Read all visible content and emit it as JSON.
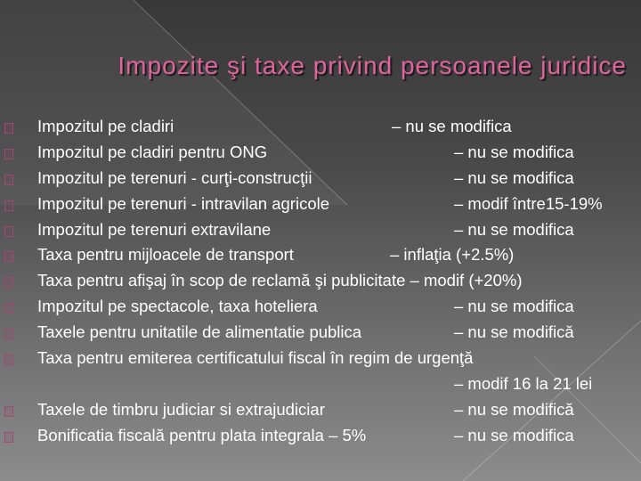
{
  "slide": {
    "title": "Impozite şi taxe privind persoanele juridice",
    "accent_color": "#e0649c",
    "bullet_icon": "square-bullet-icon",
    "items": [
      {
        "text": "Impozitul pe cladiri",
        "status": "– nu se modifica"
      },
      {
        "text": "Impozitul pe cladiri pentru ONG",
        "status": "– nu se modifica"
      },
      {
        "text": "Impozitul pe terenuri - curţi-construcţii",
        "status": "– nu se modifica"
      },
      {
        "text": "Impozitul pe terenuri - intravilan agricole",
        "status": "– modif între15-19%"
      },
      {
        "text": "Impozitul pe terenuri extravilane",
        "status": "– nu se modifica"
      },
      {
        "text": "Taxa pentru mijloacele de transport",
        "status": "– inflaţia (+2.5%)"
      },
      {
        "text": "Taxa pentru afişaj în scop de reclamă şi publicitate – modif (+20%)",
        "status": ""
      },
      {
        "text": "Impozitul pe spectacole, taxa hoteliera",
        "status": "– nu se modifica"
      },
      {
        "text": "Taxele pentru unitatile de alimentatie publica",
        "status": "– nu se modifică"
      },
      {
        "text": "Taxa pentru emiterea certificatului fiscal în regim de urgenţă",
        "status": "– modif 16 la 21 lei"
      },
      {
        "text": "Taxele de timbru judiciar si extrajudiciar",
        "status": "– nu se modifică"
      },
      {
        "text": "Bonificatia fiscală pentru plata integrala – 5%",
        "status": "– nu se modifica"
      }
    ]
  }
}
